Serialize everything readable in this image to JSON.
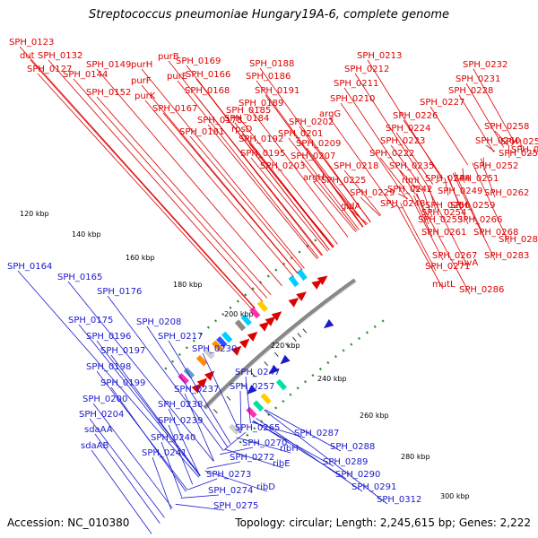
{
  "header": {
    "title": "Streptococcus pneumoniae Hungary19A-6, complete genome"
  },
  "footer": {
    "accession": "Accession: NC_010380",
    "summary": "Topology: circular; Length: 2,245,615 bp; Genes: 2,222"
  },
  "colors": {
    "forward": "#dd0000",
    "reverse": "#1a1acc",
    "backbone": "#888888",
    "gc_dots": "#2f8f2f",
    "palette": [
      "#00d0ff",
      "#ff2fb0",
      "#8a8a8a",
      "#cfcfcf",
      "#ff8c00",
      "#ffcc00",
      "#00e0a0",
      "#3050ff",
      "#b0b0ff",
      "#5fa0d0"
    ]
  },
  "ticks": [
    "120 kbp",
    "140 kbp",
    "160 kbp",
    "180 kbp",
    "200 kbp",
    "220 kbp",
    "240 kbp",
    "260 kbp",
    "280 kbp",
    "300 kbp"
  ],
  "top_labels": [
    "SPH_0123",
    "dut",
    "SPH_0132",
    "SPH_0127",
    "SPH_0144",
    "SPH_0149",
    "purH",
    "purB",
    "SPH_0169",
    "purF",
    "purE",
    "SPH_0166",
    "SPH_0152",
    "purK",
    "SPH_0168",
    "SPH_0167",
    "SPH_0178",
    "SPH_0181",
    "SPH_0184",
    "rpsD",
    "SPH_0185",
    "SPH_0188",
    "SPH_0186",
    "SPH_0191",
    "SPH_0189",
    "SPH_0192",
    "SPH_0195",
    "SPH_0203",
    "SPH_0202",
    "SPH_0201",
    "SPH_0209",
    "SPH_0207",
    "SPH_0213",
    "SPH_0212",
    "SPH_0211",
    "SPH_0210",
    "argG",
    "SPH_0232",
    "SPH_0231",
    "SPH_0228",
    "SPH_0227",
    "SPH_0226",
    "SPH_0224",
    "SPH_0223",
    "SPH_0222",
    "SPH_0218",
    "argH",
    "SPH_0225",
    "SPH_0229",
    "gidA",
    "SPH_0235",
    "rimI",
    "SPH_0244",
    "SPH_0242",
    "SPH_0248",
    "SPH_0250",
    "SPH_0249",
    "SPH_0251",
    "SPH_0252",
    "SPH_0255",
    "SPH_0256",
    "SPH_0263",
    "SPH_0260",
    "SPH_0258",
    "SPH_0262",
    "SPH_0254",
    "SPH_0259",
    "SPH_0253",
    "SPH_0266",
    "SPH_0268",
    "SPH_0261",
    "SPH_0267",
    "SPH_0271",
    "mutL",
    "ruvA",
    "SPH_0283",
    "SPH_0284",
    "SPH_0286"
  ],
  "bottom_labels": [
    "SPH_0164",
    "SPH_0165",
    "SPH_0176",
    "SPH_0175",
    "SPH_0208",
    "SPH_0196",
    "SPH_0197",
    "SPH_0198",
    "SPH_0199",
    "SPH_0200",
    "SPH_0204",
    "sdaAA",
    "sdaAB",
    "SPH_0217",
    "SPH_0230",
    "SPH_0247",
    "SPH_0237",
    "SPH_0257",
    "SPH_0238",
    "SPH_0239",
    "SPH_0240",
    "SPH_0241",
    "SPH_0265",
    "SPH_0270",
    "SPH_0272",
    "SPH_0273",
    "SPH_0274",
    "SPH_0275",
    "ribH",
    "ribE",
    "ribD",
    "SPH_0287",
    "SPH_0288",
    "SPH_0289",
    "SPH_0290",
    "SPH_0291",
    "SPH_0312"
  ]
}
